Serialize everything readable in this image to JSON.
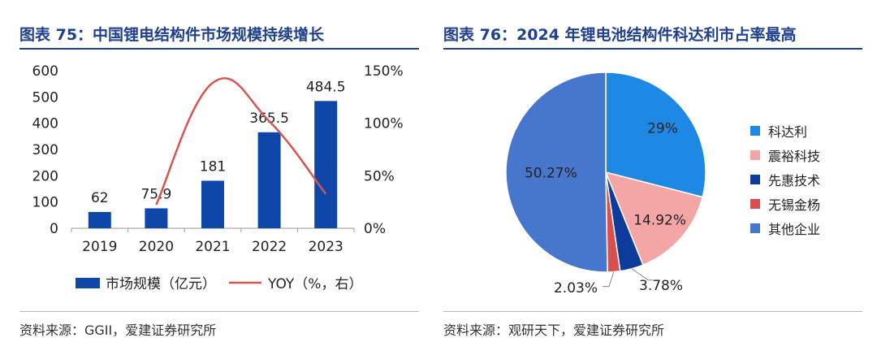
{
  "left": {
    "title": "图表 75：中国锂电结构件市场规模持续增长",
    "source": "资料来源：GGII，爱建证券研究所"
  },
  "right": {
    "title": "图表 76：2024 年锂电池结构件科达利市占率最高",
    "source": "资料来源：观研天下，爱建证券研究所"
  },
  "colors": {
    "title": "#1f3f8f",
    "bar": "#0f47a8",
    "line": "#d9534f"
  },
  "chart_data": [
    {
      "type": "bar",
      "categories": [
        "2019",
        "2020",
        "2021",
        "2022",
        "2023"
      ],
      "series": [
        {
          "name": "市场规模（亿元）",
          "values": [
            62,
            75.9,
            181,
            365.5,
            484.5
          ],
          "value_labels": [
            "62",
            "75.9",
            "181",
            "365.5",
            "484.5"
          ]
        },
        {
          "name": "YOY（%，右）",
          "type": "line",
          "axis": "right",
          "x": [
            "2020",
            "2021",
            "2022",
            "2023"
          ],
          "values": [
            22.4,
            138.5,
            101.9,
            32.6
          ]
        }
      ],
      "ylim": [
        0,
        600
      ],
      "yticks": [
        "0",
        "100",
        "200",
        "300",
        "400",
        "500",
        "600"
      ],
      "ylim_right": [
        0,
        150
      ],
      "yticks_right": [
        "0%",
        "50%",
        "100%",
        "150%"
      ],
      "legend": [
        "市场规模（亿元）",
        "YOY（%，右）"
      ],
      "legend_position": "bottom"
    },
    {
      "type": "pie",
      "labels": [
        "科达利",
        "震裕科技",
        "先惠技术",
        "无锡金杨",
        "其他企业"
      ],
      "values": [
        29,
        14.92,
        3.78,
        2.03,
        50.27
      ],
      "value_labels": [
        "29%",
        "14.92%",
        "3.78%",
        "2.03%",
        "50.27%"
      ],
      "colors": [
        "#1e88e5",
        "#f4a6a6",
        "#0d3b9c",
        "#d94f4f",
        "#4677cc"
      ],
      "legend_position": "right"
    }
  ]
}
